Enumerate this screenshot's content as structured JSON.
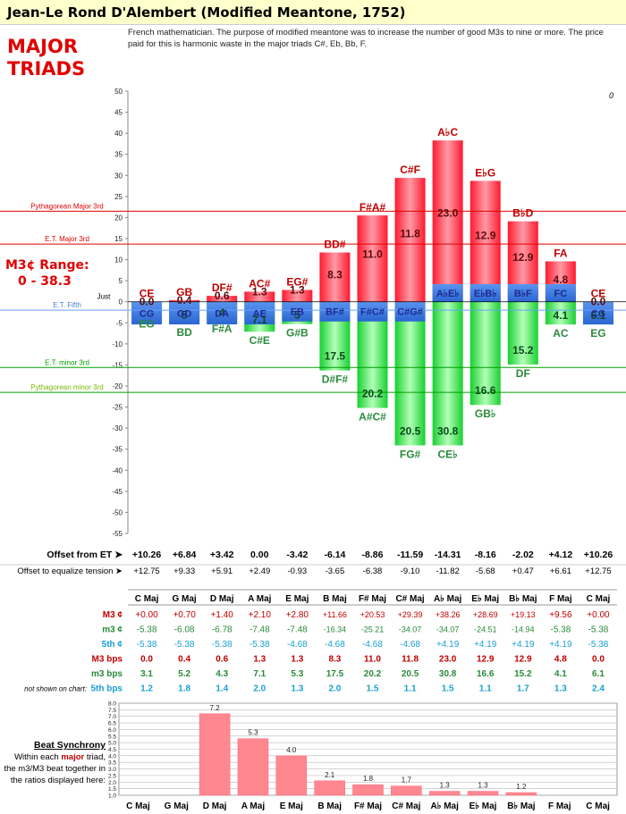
{
  "title": "Jean-Le Rond D'Alembert (Modified Meantone, 1752)",
  "label_major": "MAJOR",
  "label_triads": "TRIADS",
  "description": "French mathematician. The purpose of modified meantone was to increase the number of good M3s to nine or more. The price paid for this is harmonic waste in the major triads C#, Eb, Bb, F.",
  "range_title": "M3¢ Range:",
  "range_value": "0 - 38.3",
  "corner_value": "0",
  "ref_lines": {
    "pyth_major": "Pythagorean Major 3rd",
    "et_major": "E.T. Major 3rd",
    "just": "Just",
    "et_fifth": "E.T. Fifth",
    "et_minor": "E.T. minor 3rd",
    "pyth_minor": "Pythagorean minor 3rd"
  },
  "colors": {
    "red_line": "#e00000",
    "green_line": "#00a000",
    "blue_fifth": "#3a7be0",
    "major_bar": "#ff3040",
    "minor_bar": "#30dd40",
    "label_red": "#c00000",
    "label_green": "#2a8a3a",
    "label_blue": "#1e2a8c"
  },
  "chart_data": {
    "type": "bar",
    "ylim": [
      -55,
      50
    ],
    "yticks": [
      50,
      45,
      40,
      35,
      30,
      25,
      20,
      15,
      10,
      5,
      0,
      -5,
      -10,
      -15,
      -20,
      -25,
      -30,
      -35,
      -40,
      -45,
      -50,
      -55
    ],
    "reference_values": {
      "pyth_major": 21.5,
      "et_major": 13.7,
      "et_fifth": -2,
      "et_minor": -15.6,
      "pyth_minor": -21.5
    },
    "series": [
      {
        "name": "M3 bps",
        "values": [
          0.0,
          0.4,
          0.6,
          1.3,
          1.3,
          8.3,
          11.0,
          11.8,
          23.0,
          12.9,
          12.9,
          4.8,
          0.0
        ]
      },
      {
        "name": "m3 bps",
        "values": [
          3.1,
          5.2,
          4.3,
          7.1,
          5.3,
          17.5,
          20.2,
          20.5,
          30.8,
          16.6,
          15.2,
          4.1,
          6.1
        ]
      },
      {
        "name": "5th bps",
        "values": [
          1.2,
          1.8,
          1.4,
          2.0,
          1.3,
          2.0,
          1.5,
          1.1,
          1.5,
          1.1,
          1.7,
          1.3,
          2.4
        ]
      }
    ],
    "bars": [
      {
        "M3": 0.0,
        "m3": 3.1,
        "M3_bar_label": "0.0",
        "m3_bar_label": "",
        "fifth_bar_label": "CG",
        "M3_name": "CE",
        "m3_name": "EG",
        "M3_name_over": "0.0"
      },
      {
        "M3": 0.4,
        "m3": 5.2,
        "M3_bar_label": "0.4",
        "m3_bar_label": "5",
        "fifth_bar_label": "GD",
        "M3_name": "GB",
        "m3_name": "BD",
        "M3_name_over": ""
      },
      {
        "M3": 1.4,
        "m3": 4.3,
        "M3_bar_label": "0.6",
        "m3_bar_label": "4",
        "fifth_bar_label": "DA",
        "M3_name": "DF#",
        "m3_name": "F#A",
        "M3_name_over": ""
      },
      {
        "M3": 2.4,
        "m3": 7.1,
        "M3_bar_label": "1.3",
        "m3_bar_label": "7.1",
        "fifth_bar_label": "AE",
        "M3_name": "AC#",
        "m3_name": "C#E",
        "M3_name_over": ""
      },
      {
        "M3": 2.8,
        "m3": 5.3,
        "M3_bar_label": "1.3",
        "m3_bar_label": "5",
        "fifth_bar_label": "EB",
        "M3_name": "EG#",
        "m3_name": "G#B",
        "M3_name_over": ""
      },
      {
        "M3": 11.7,
        "m3": 16.3,
        "M3_bar_label": "8.3",
        "m3_bar_label": "17.5",
        "fifth_bar_label": "BF#",
        "M3_name": "BD#",
        "m3_name": "D#F#",
        "M3_name_over": ""
      },
      {
        "M3": 20.5,
        "m3": 25.2,
        "M3_bar_label": "11.0",
        "m3_bar_label": "20.2",
        "fifth_bar_label": "F#C#",
        "M3_name": "F#A#",
        "m3_name": "A#C#",
        "M3_name_over": ""
      },
      {
        "M3": 29.4,
        "m3": 34.1,
        "M3_bar_label": "11.8",
        "m3_bar_label": "20.5",
        "fifth_bar_label": "C#G#",
        "M3_name": "C#F",
        "m3_name": "FG#",
        "M3_name_over": ""
      },
      {
        "M3": 38.3,
        "m3": 34.1,
        "M3_bar_label": "23.0",
        "m3_bar_label": "30.8",
        "fifth_bar_label": "A♭E♭",
        "M3_name": "A♭C",
        "m3_name": "CE♭",
        "M3_name_over": ""
      },
      {
        "M3": 28.7,
        "m3": 24.5,
        "M3_bar_label": "12.9",
        "m3_bar_label": "16.6",
        "fifth_bar_label": "E♭B♭",
        "M3_name": "E♭G",
        "m3_name": "GB♭",
        "M3_name_over": ""
      },
      {
        "M3": 19.1,
        "m3": 14.9,
        "M3_bar_label": "12.9",
        "m3_bar_label": "15.2",
        "fifth_bar_label": "B♭F",
        "M3_name": "B♭D",
        "m3_name": "DF",
        "M3_name_over": ""
      },
      {
        "M3": 9.6,
        "m3": 5.4,
        "M3_bar_label": "4.8",
        "m3_bar_label": "4.1",
        "fifth_bar_label": "FC",
        "M3_name": "FA",
        "m3_name": "AC",
        "M3_name_over": ""
      },
      {
        "M3": 0.0,
        "m3": 5.4,
        "M3_bar_label": "0.0",
        "m3_bar_label": "6.1",
        "fifth_bar_label": "CG",
        "M3_name": "CE",
        "m3_name": "EG",
        "M3_name_over": ""
      }
    ]
  },
  "offset_rows": [
    {
      "label": "Offset from ET ➤",
      "values": [
        "+10.26",
        "+6.84",
        "+3.42",
        "0.00",
        "-3.42",
        "-6.14",
        "-8.86",
        "-11.59",
        "-14.31",
        "-8.16",
        "-2.02",
        "+4.12",
        "+10.26"
      ],
      "bold": true
    },
    {
      "label": "Offset to equalize tension ➤",
      "values": [
        "+12.75",
        "+9.33",
        "+5.91",
        "+2.49",
        "-0.93",
        "-3.65",
        "-6.38",
        "-9.10",
        "-11.82",
        "-5.68",
        "+0.47",
        "+6.61",
        "+12.75"
      ],
      "bold": false
    }
  ],
  "table": {
    "headers": [
      "C Maj",
      "G Maj",
      "D Maj",
      "A Maj",
      "E Maj",
      "B Maj",
      "F# Maj",
      "C# Maj",
      "A♭ Maj",
      "E♭ Maj",
      "B♭ Maj",
      "F Maj",
      "C Maj"
    ],
    "rows": [
      {
        "label": "M3 ¢",
        "color": "#c00000",
        "values": [
          "+0.00",
          "+0.70",
          "+1.40",
          "+2.10",
          "+2.80",
          "+11.66",
          "+20.53",
          "+29.39",
          "+38.26",
          "+28.69",
          "+19.13",
          "+9.56",
          "+0.00"
        ]
      },
      {
        "label": "m3 ¢",
        "color": "#2a8a3a",
        "values": [
          "-5.38",
          "-6.08",
          "-6.78",
          "-7.48",
          "-7.48",
          "-16.34",
          "-25.21",
          "-34.07",
          "-34.07",
          "-24.51",
          "-14.94",
          "-5.38",
          "-5.38"
        ]
      },
      {
        "label": "5th ¢",
        "color": "#1aa0d0",
        "values": [
          "-5.38",
          "-5.38",
          "-5.38",
          "-5.38",
          "-4.68",
          "-4.68",
          "-4.68",
          "-4.68",
          "+4.19",
          "+4.19",
          "+4.19",
          "+4.19",
          "-5.38"
        ]
      },
      {
        "label": "M3 bps",
        "color": "#c00000",
        "bold": true,
        "values": [
          "0.0",
          "0.4",
          "0.6",
          "1.3",
          "1.3",
          "8.3",
          "11.0",
          "11.8",
          "23.0",
          "12.9",
          "12.9",
          "4.8",
          "0.0"
        ]
      },
      {
        "label": "m3 bps",
        "color": "#2a8a3a",
        "bold": true,
        "values": [
          "3.1",
          "5.2",
          "4.3",
          "7.1",
          "5.3",
          "17.5",
          "20.2",
          "20.5",
          "30.8",
          "16.6",
          "15.2",
          "4.1",
          "6.1"
        ]
      },
      {
        "label": "5th bps",
        "color": "#1aa0d0",
        "bold": true,
        "note": "not shown on chart:",
        "values": [
          "1.2",
          "1.8",
          "1.4",
          "2.0",
          "1.3",
          "2.0",
          "1.5",
          "1.1",
          "1.5",
          "1.1",
          "1.7",
          "1.3",
          "2.4"
        ]
      }
    ]
  },
  "beat": {
    "title": "Beat Synchrony",
    "text_pre": "Within each ",
    "text_major": "major",
    "text_post": " triad, the m3/M3 beat together in the ratios displayed here:",
    "yticks": [
      "8.0",
      "7.5",
      "7.0",
      "6.5",
      "6.0",
      "5.5",
      "5.0",
      "4.5",
      "4.0",
      "3.5",
      "3.0",
      "2.5",
      "2.0",
      "1.5",
      "1.0"
    ],
    "categories": [
      "C Maj",
      "G Maj",
      "D Maj",
      "A Maj",
      "E Maj",
      "B Maj",
      "F# Maj",
      "C# Maj",
      "A♭ Maj",
      "E♭ Maj",
      "B♭ Maj",
      "F Maj",
      "C Maj"
    ],
    "values": [
      null,
      null,
      7.2,
      5.3,
      4.0,
      2.1,
      1.8,
      1.7,
      1.3,
      1.3,
      1.2,
      null,
      null
    ],
    "labels": [
      "",
      "",
      "7.2",
      "5.3",
      "4.0",
      "2.1",
      "1.8",
      "1.7",
      "1.3",
      "1.3",
      "1.2",
      "",
      ""
    ]
  }
}
